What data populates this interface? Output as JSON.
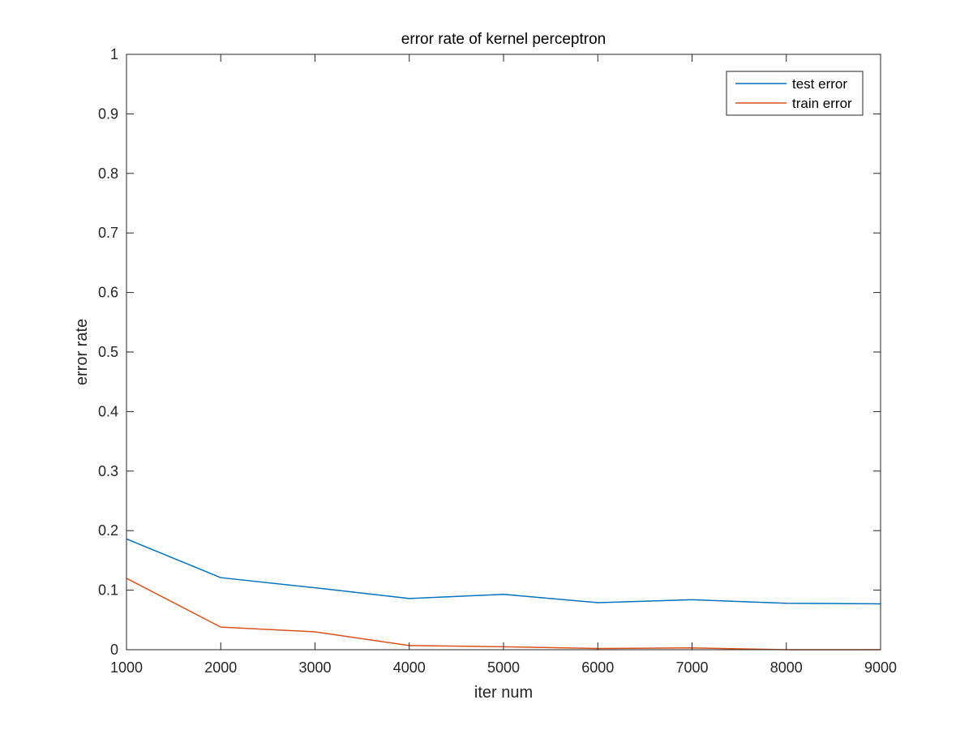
{
  "chart_data": {
    "type": "line",
    "title": "error rate of kernel perceptron",
    "xlabel": "iter num",
    "ylabel": "error rate",
    "x": [
      1000,
      2000,
      3000,
      4000,
      5000,
      6000,
      7000,
      8000,
      9000
    ],
    "xlim": [
      1000,
      9000
    ],
    "ylim": [
      0,
      1
    ],
    "xticks": [
      "1000",
      "2000",
      "3000",
      "4000",
      "5000",
      "6000",
      "7000",
      "8000",
      "9000"
    ],
    "yticks": [
      "0",
      "0.1",
      "0.2",
      "0.3",
      "0.4",
      "0.5",
      "0.6",
      "0.7",
      "0.8",
      "0.9",
      "1"
    ],
    "grid": false,
    "legend_position": "top-right",
    "series": [
      {
        "name": "test error",
        "color": "#0072BD",
        "values": [
          0.186,
          0.121,
          0.104,
          0.086,
          0.093,
          0.079,
          0.084,
          0.078,
          0.077
        ]
      },
      {
        "name": "train error",
        "color": "#D95319",
        "values": [
          0.12,
          0.038,
          0.03,
          0.007,
          0.005,
          0.002,
          0.003,
          0.0,
          0.0
        ]
      }
    ]
  }
}
